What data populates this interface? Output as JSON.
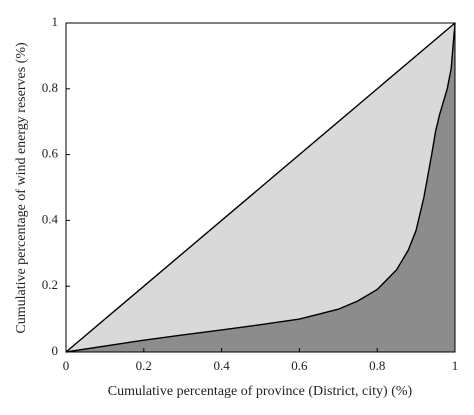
{
  "chart_data": {
    "type": "line",
    "x_label": "Cumulative percentage of province (District, city) (%)",
    "y_label": "Cumulative percentage of wind energy reserves (%)",
    "xlim": [
      0,
      1
    ],
    "ylim": [
      0,
      1
    ],
    "xticks": [
      0,
      0.2,
      0.4,
      0.6,
      0.8,
      1
    ],
    "yticks": [
      0,
      0.2,
      0.4,
      0.6,
      0.8,
      1
    ],
    "series": [
      {
        "x": [
          0,
          1
        ],
        "values": [
          0,
          1
        ],
        "color": "#000000",
        "fill": "#d9d9d9"
      },
      {
        "x": [
          0,
          0.1,
          0.2,
          0.3,
          0.4,
          0.5,
          0.6,
          0.7,
          0.75,
          0.8,
          0.85,
          0.88,
          0.9,
          0.92,
          0.94,
          0.95,
          0.96,
          0.97,
          0.98,
          0.99,
          1
        ],
        "values": [
          0,
          0.018,
          0.036,
          0.052,
          0.067,
          0.083,
          0.1,
          0.13,
          0.155,
          0.19,
          0.25,
          0.31,
          0.37,
          0.47,
          0.6,
          0.67,
          0.72,
          0.76,
          0.8,
          0.86,
          1
        ],
        "color": "#000000",
        "fill": "#8c8c8c"
      }
    ]
  }
}
